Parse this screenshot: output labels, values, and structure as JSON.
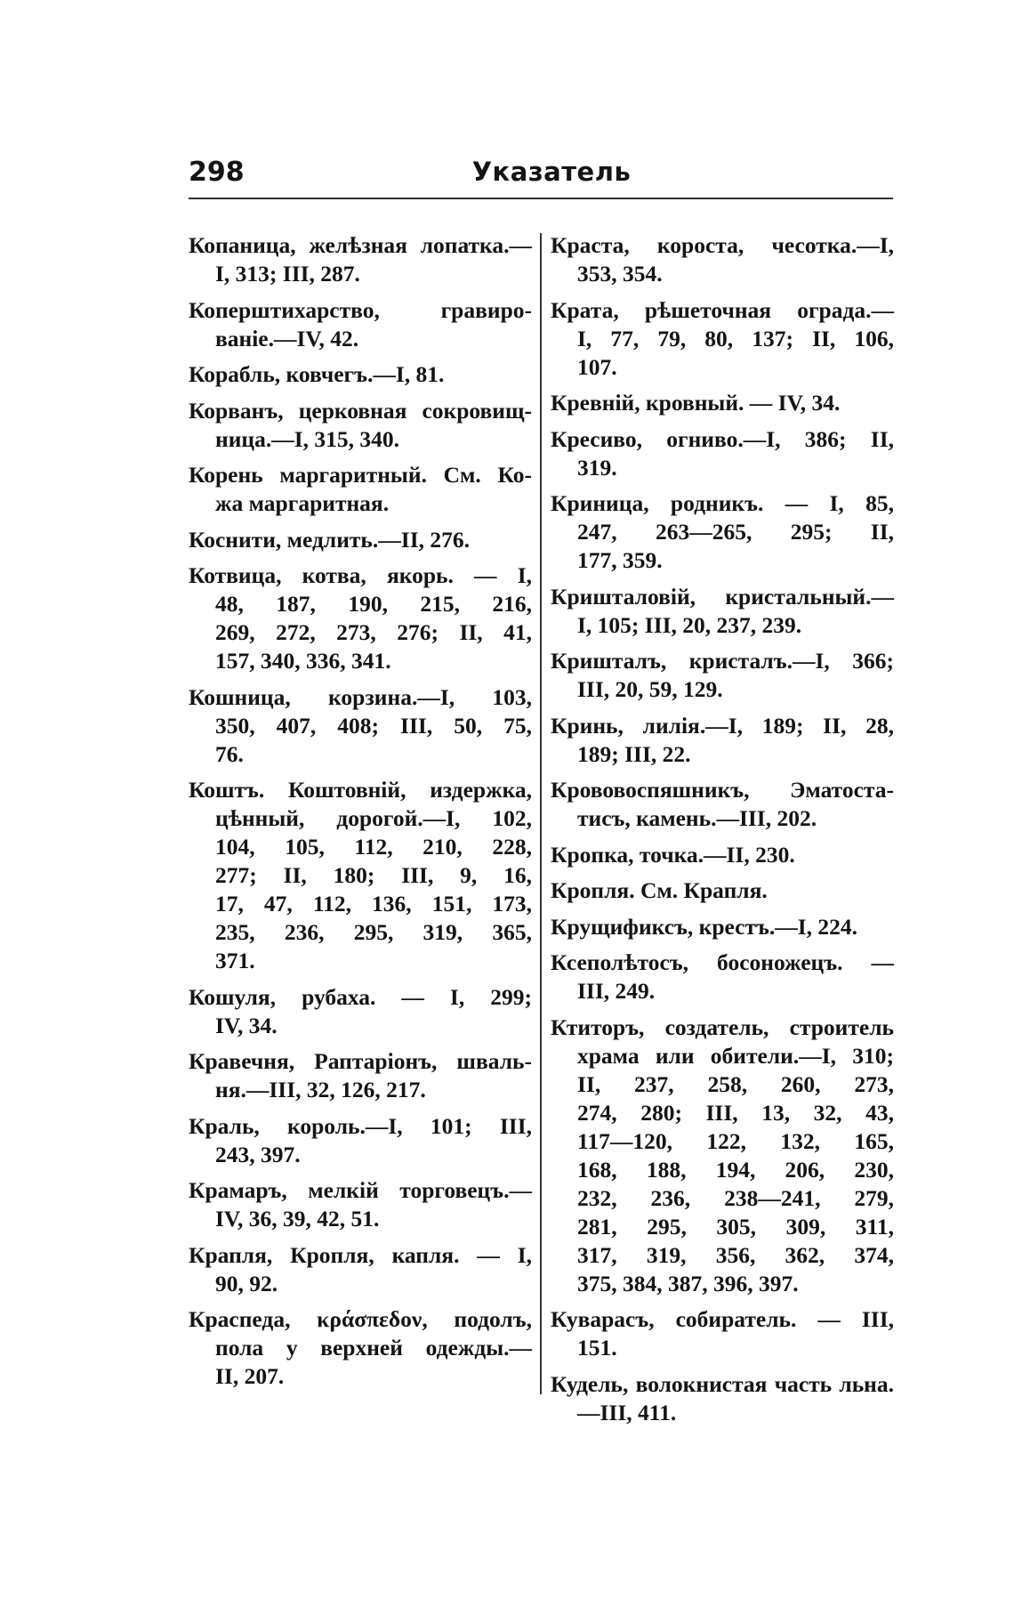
{
  "header": {
    "page_number": "298",
    "title": "Указатель"
  },
  "columns": [
    {
      "entries": [
        {
          "lines": [
            "Копаница, желѣзная лопатка.—",
            "I, 313; III, 287."
          ]
        },
        {
          "lines": [
            "Коперштихарство, гравиро-",
            "ваніе.—IV, 42."
          ]
        },
        {
          "lines": [
            "Корабль, ковчегъ.—I, 81."
          ]
        },
        {
          "lines": [
            "Корванъ, церковная сокровищ-",
            "ница.—I, 315, 340."
          ]
        },
        {
          "lines": [
            "Корень маргаритный. См. Ко-",
            "жа маргаритная."
          ]
        },
        {
          "lines": [
            "Коснити, медлить.—II, 276."
          ]
        },
        {
          "lines": [
            "Котвица, котва, якорь. — I,",
            "48, 187, 190, 215, 216,",
            "269, 272, 273, 276; II, 41,",
            "157, 340, 336, 341."
          ]
        },
        {
          "lines": [
            "Кошница, корзина.—I, 103,",
            "350, 407, 408; III, 50, 75,",
            "76."
          ]
        },
        {
          "lines": [
            "Коштъ. Коштовній, издержка,",
            "цѣнный, дорогой.—I, 102,",
            "104, 105, 112, 210, 228,",
            "277; II, 180; III, 9, 16,",
            "17, 47, 112, 136, 151, 173,",
            "235, 236, 295, 319, 365,",
            "371."
          ]
        },
        {
          "lines": [
            "Кошуля, рубаха. — I, 299;",
            "IV, 34."
          ]
        },
        {
          "lines": [
            "Кравечня, Раптаріонъ, шваль-",
            "ня.—III, 32, 126, 217."
          ]
        },
        {
          "lines": [
            "Краль, король.—I, 101; III,",
            "243, 397."
          ]
        },
        {
          "lines": [
            "Крамаръ, мелкій торговецъ.—",
            "IV, 36, 39, 42, 51."
          ]
        },
        {
          "lines": [
            "Крапля, Кропля, капля. — I,",
            "90, 92."
          ]
        },
        {
          "lines": [
            "Краспеда, κράσπεδον, подолъ,",
            "пола у верхней одежды.—",
            "II, 207."
          ]
        }
      ]
    },
    {
      "entries": [
        {
          "lines": [
            "Краста, короста, чесотка.—I,",
            "353, 354."
          ]
        },
        {
          "lines": [
            "Крата, рѣшеточная ограда.—",
            "I, 77, 79, 80, 137; II, 106,",
            "107."
          ]
        },
        {
          "lines": [
            "Кревній, кровный. — IV, 34."
          ]
        },
        {
          "lines": [
            "Кресиво, огниво.—I, 386; II,",
            "319."
          ]
        },
        {
          "lines": [
            "Криница, родникъ. — I, 85,",
            "247, 263—265, 295; II,",
            "177, 359."
          ]
        },
        {
          "lines": [
            "Кришталовій, кристальный.—",
            "I, 105; III, 20, 237, 239."
          ]
        },
        {
          "lines": [
            "Кришталъ, кристалъ.—I, 366;",
            "III, 20, 59, 129."
          ]
        },
        {
          "lines": [
            "Кринь, лилія.—I, 189; II, 28,",
            "189; III, 22."
          ]
        },
        {
          "lines": [
            "Крововоспяшникъ, Эматоста-",
            "тисъ, камень.—III, 202."
          ]
        },
        {
          "lines": [
            "Кропка, точка.—II, 230."
          ]
        },
        {
          "lines": [
            "Кропля. См. Крапля."
          ]
        },
        {
          "lines": [
            "Крущификсъ, крестъ.—I, 224."
          ]
        },
        {
          "lines": [
            "Ксеполѣтосъ, босоножецъ. —",
            "III, 249."
          ]
        },
        {
          "lines": [
            "Ктиторъ, создатель, строитель",
            "храма или обители.—I, 310;",
            "II, 237, 258, 260, 273,",
            "274, 280; III, 13, 32, 43,",
            "117—120, 122, 132, 165,",
            "168, 188, 194, 206, 230,",
            "232, 236, 238—241, 279,",
            "281, 295, 305, 309, 311,",
            "317, 319, 356, 362, 374,",
            "375, 384, 387, 396, 397."
          ]
        },
        {
          "lines": [
            "Куварасъ, собиратель. — III,",
            "151."
          ]
        },
        {
          "lines": [
            "Кудель, волокнистая часть льна.",
            "—III, 411."
          ]
        }
      ]
    }
  ]
}
